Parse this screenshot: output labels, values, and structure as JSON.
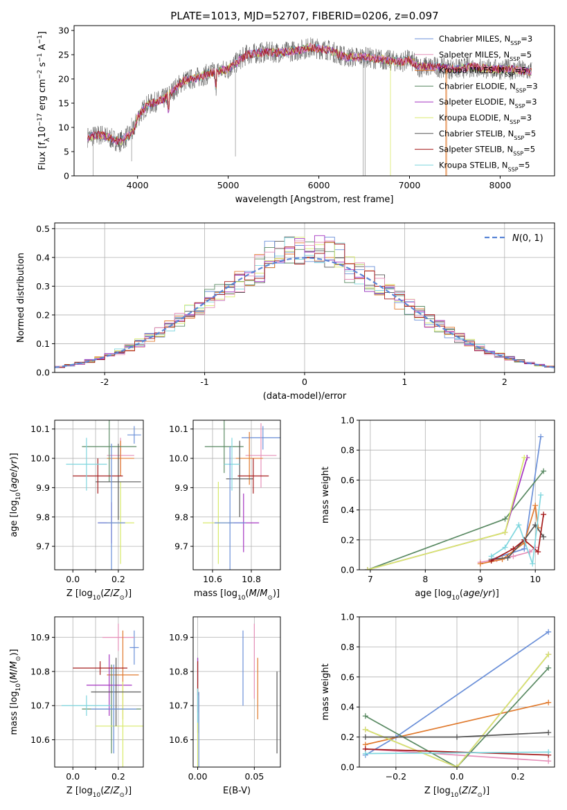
{
  "title": "PLATE=1013, MJD=52707, FIBERID=0206, z=0.097",
  "series_styles": [
    {
      "name": "Chabrier MILES, N_SSP=3",
      "color": "#6a8fd8"
    },
    {
      "name": "Salpeter MILES, N_SSP=5",
      "color": "#e58fb8"
    },
    {
      "name": "Kroupa MILES, N_SSP=5",
      "color": "#e07a2e"
    },
    {
      "name": "Chabrier ELODIE, N_SSP=3",
      "color": "#5a8a63"
    },
    {
      "name": "Salpeter ELODIE, N_SSP=3",
      "color": "#a432c0"
    },
    {
      "name": "Kroupa ELODIE, N_SSP=3",
      "color": "#d8ea6a"
    },
    {
      "name": "Chabrier STELIB, N_SSP=5",
      "color": "#555555"
    },
    {
      "name": "Salpeter STELIB, N_SSP=5",
      "color": "#a51b1b"
    },
    {
      "name": "Kroupa STELIB, N_SSP=5",
      "color": "#7fd6de"
    }
  ],
  "legend_html": [
    "Chabrier MILES, N<tspan baseline-shift='sub' font-size='8'>SSP</tspan>=3",
    "Salpeter MILES, N<tspan baseline-shift='sub' font-size='8'>SSP</tspan>=5",
    "Kroupa MILES, N<tspan baseline-shift='sub' font-size='8'>SSP</tspan>=5",
    "Chabrier ELODIE, N<tspan baseline-shift='sub' font-size='8'>SSP</tspan>=3",
    "Salpeter ELODIE, N<tspan baseline-shift='sub' font-size='8'>SSP</tspan>=3",
    "Kroupa ELODIE, N<tspan baseline-shift='sub' font-size='8'>SSP</tspan>=3",
    "Chabrier STELIB, N<tspan baseline-shift='sub' font-size='8'>SSP</tspan>=5",
    "Salpeter STELIB, N<tspan baseline-shift='sub' font-size='8'>SSP</tspan>=5",
    "Kroupa STELIB, N<tspan baseline-shift='sub' font-size='8'>SSP</tspan>=5"
  ],
  "chart_data": [
    {
      "id": "spectrum",
      "type": "line",
      "xlabel": "wavelength [Angstrom, rest frame]",
      "ylabel": "Flux [fλ10⁻¹⁷ erg cm⁻² s⁻¹ A⁻¹]",
      "xlim": [
        3300,
        8600
      ],
      "ylim": [
        0,
        31
      ],
      "xticks": [
        4000,
        5000,
        6000,
        7000,
        8000
      ],
      "yticks": [
        0,
        5,
        10,
        15,
        20,
        25,
        30
      ],
      "grid": false,
      "legend": "right",
      "continuum": {
        "x": [
          3450,
          3600,
          3800,
          3950,
          4000,
          4100,
          4300,
          4500,
          4700,
          4850,
          5000,
          5200,
          5400,
          5600,
          5800,
          5900,
          6100,
          6300,
          6500,
          6700,
          6900,
          7000,
          7100,
          7300,
          7500,
          7700,
          7900,
          8100,
          8350
        ],
        "y": [
          8,
          8.5,
          7,
          9,
          12,
          14.5,
          16,
          19.5,
          20.5,
          21.5,
          22,
          25,
          25.5,
          25.5,
          26,
          26.5,
          26,
          24.5,
          24.5,
          24,
          23.5,
          24,
          22.5,
          22.5,
          22,
          22.5,
          22,
          22,
          21.5
        ]
      }
    },
    {
      "id": "residuals",
      "type": "histogram",
      "xlabel": "(data-model)/error",
      "ylabel": "Normed distribution",
      "xlim": [
        -2.5,
        2.5
      ],
      "ylim": [
        0,
        0.52
      ],
      "xticks": [
        -2,
        -1,
        0,
        1,
        2
      ],
      "yticks": [
        0,
        0.1,
        0.2,
        0.3,
        0.4,
        0.5
      ],
      "grid": true,
      "legend": "top-right",
      "reference": {
        "name": "N(0,1)",
        "color": "#5b86d6",
        "mean": 0,
        "sigma": 1
      }
    },
    {
      "id": "age_vs_Z",
      "type": "errorbar",
      "xlabel": "Z [log10(Z/Z⊙)]",
      "ylabel": "age [log10(age/yr)]",
      "xlim": [
        -0.08,
        0.31
      ],
      "ylim": [
        9.62,
        10.13
      ],
      "xticks": [
        0,
        0.1,
        0.2
      ],
      "xticklabels": [
        "0.0",
        "",
        "0.2"
      ],
      "yticks": [
        9.7,
        9.8,
        9.9,
        10.0,
        10.1
      ],
      "grid": true,
      "points": [
        [
          0.27,
          10.08,
          0.03,
          0.03
        ],
        [
          0.21,
          10.01,
          0.06,
          0.06
        ],
        [
          0.21,
          10.0,
          0.06,
          0.06
        ],
        [
          0.16,
          10.04,
          0.12,
          0.12
        ],
        [
          0.17,
          9.78,
          0.06,
          0.07
        ],
        [
          0.21,
          9.78,
          0.06,
          0.14
        ],
        [
          0.2,
          9.92,
          0.1,
          0.13
        ],
        [
          0.11,
          9.94,
          0.11,
          0.06
        ],
        [
          0.06,
          9.98,
          0.09,
          0.09
        ],
        [
          0.17,
          9.78,
          0.06,
          0.27
        ]
      ]
    },
    {
      "id": "age_vs_mass",
      "type": "errorbar",
      "xlabel": "mass [log10(M/M⊙)]",
      "ylabel": "",
      "xlim": [
        10.5,
        10.95
      ],
      "ylim": [
        9.62,
        10.13
      ],
      "xticks": [
        10.6,
        10.8
      ],
      "xticklabels": [
        "10.6",
        "10.8"
      ],
      "yticks": [
        9.7,
        9.8,
        9.9,
        10.0,
        10.1
      ],
      "grid": true,
      "points": [
        [
          10.86,
          10.07,
          0.11,
          0.04
        ],
        [
          10.85,
          10.01,
          0.08,
          0.11
        ],
        [
          10.79,
          10.0,
          0.07,
          0.09
        ],
        [
          10.66,
          10.04,
          0.1,
          0.09
        ],
        [
          10.76,
          9.78,
          0.08,
          0.1
        ],
        [
          10.63,
          9.78,
          0.08,
          0.14
        ],
        [
          10.74,
          9.93,
          0.07,
          0.13
        ],
        [
          10.81,
          9.94,
          0.08,
          0.06
        ],
        [
          10.7,
          9.98,
          0.04,
          0.09
        ],
        [
          10.69,
          9.78,
          0.08,
          0.26
        ]
      ]
    },
    {
      "id": "mass_weight_vs_age",
      "type": "line",
      "xlabel": "age [log10(age/yr)]",
      "ylabel": "mass weight",
      "xlim": [
        6.8,
        10.35
      ],
      "ylim": [
        0,
        1
      ],
      "xticks": [
        7,
        8,
        9,
        10
      ],
      "yticks": [
        0,
        0.2,
        0.4,
        0.6,
        0.8,
        1.0
      ],
      "grid": true,
      "series": [
        {
          "name": "Chabrier MILES",
          "ages": [
            9.2,
            9.8,
            10.1
          ],
          "w": [
            0.07,
            0.14,
            0.89
          ]
        },
        {
          "name": "Salpeter MILES",
          "ages": [
            9.0,
            9.3,
            9.6,
            9.9,
            10.0
          ],
          "w": [
            0.05,
            0.07,
            0.09,
            0.12,
            0.15
          ]
        },
        {
          "name": "Kroupa MILES",
          "ages": [
            9.0,
            9.4,
            9.8,
            10.0,
            10.05
          ],
          "w": [
            0.04,
            0.07,
            0.18,
            0.43,
            0.28
          ]
        },
        {
          "name": "Chabrier ELODIE",
          "ages": [
            6.95,
            9.45,
            10.15
          ],
          "w": [
            0.0,
            0.34,
            0.66
          ]
        },
        {
          "name": "Salpeter ELODIE",
          "ages": [
            6.95,
            9.45,
            9.85
          ],
          "w": [
            0.0,
            0.25,
            0.75
          ]
        },
        {
          "name": "Kroupa ELODIE",
          "ages": [
            6.95,
            9.45,
            9.8
          ],
          "w": [
            0.0,
            0.25,
            0.75
          ]
        },
        {
          "name": "Chabrier STELIB",
          "ages": [
            9.2,
            9.5,
            9.8,
            10.0,
            10.15
          ],
          "w": [
            0.07,
            0.08,
            0.2,
            0.3,
            0.22
          ]
        },
        {
          "name": "Salpeter STELIB",
          "ages": [
            9.2,
            9.6,
            9.8,
            10.05,
            10.15
          ],
          "w": [
            0.06,
            0.14,
            0.2,
            0.12,
            0.37
          ]
        },
        {
          "name": "Kroupa STELIB",
          "ages": [
            9.2,
            9.45,
            9.7,
            9.95,
            10.1
          ],
          "w": [
            0.09,
            0.15,
            0.3,
            0.04,
            0.5
          ]
        }
      ]
    },
    {
      "id": "mass_vs_Z",
      "type": "errorbar",
      "xlabel": "Z [log10(Z/Z⊙)]",
      "ylabel": "mass [log10(M/M⊙)]",
      "xlim": [
        -0.08,
        0.31
      ],
      "ylim": [
        10.52,
        10.96
      ],
      "xticks": [
        0,
        0.1,
        0.2
      ],
      "xticklabels": [
        "0.0",
        "",
        "0.2"
      ],
      "yticks": [
        10.6,
        10.7,
        10.8,
        10.9
      ],
      "grid": true,
      "points": [
        [
          0.27,
          10.87,
          0.02,
          0.05
        ],
        [
          0.2,
          10.9,
          0.07,
          0.04
        ],
        [
          0.22,
          10.79,
          0.07,
          0.13
        ],
        [
          0.17,
          10.69,
          0.13,
          0.13
        ],
        [
          0.16,
          10.76,
          0.1,
          0.09
        ],
        [
          0.22,
          10.64,
          0.12,
          0.13
        ],
        [
          0.19,
          10.74,
          0.11,
          0.1
        ],
        [
          0.12,
          10.81,
          0.12,
          0.02
        ],
        [
          0.06,
          10.7,
          0.11,
          0.03
        ],
        [
          0.18,
          10.69,
          0.1,
          0.13
        ]
      ]
    },
    {
      "id": "mass_vs_ebv",
      "type": "errorbar",
      "xlabel": "E(B-V)",
      "ylabel": "",
      "xlim": [
        -0.004,
        0.073
      ],
      "ylim": [
        10.52,
        10.96
      ],
      "xticks": [
        0.0,
        0.05
      ],
      "xticklabels": [
        "0.00",
        "0.05"
      ],
      "yticks": [
        10.6,
        10.7,
        10.8,
        10.9
      ],
      "grid": true,
      "points": [
        [
          0.04,
          10.81,
          0,
          0.11
        ],
        [
          0.05,
          10.83,
          0,
          0.11
        ],
        [
          0.053,
          10.75,
          0,
          0.09
        ],
        [
          0.0,
          10.73,
          0,
          0.11
        ],
        [
          0.0,
          10.76,
          0,
          0.08
        ],
        [
          0.0,
          10.64,
          0,
          0.13
        ],
        [
          0.07,
          10.68,
          0,
          0.12
        ],
        [
          0.0,
          10.78,
          0,
          0.05
        ],
        [
          0.0,
          10.7,
          0,
          0.05
        ],
        [
          0.001,
          10.63,
          0,
          0.11
        ]
      ]
    },
    {
      "id": "mass_weight_vs_Z",
      "type": "line",
      "xlabel": "Z [log10(Z/Z⊙)]",
      "ylabel": "mass weight",
      "xlim": [
        -0.32,
        0.32
      ],
      "ylim": [
        0,
        1
      ],
      "xticks": [
        -0.2,
        0,
        0.2
      ],
      "xticklabels": [
        "−0.2",
        "0.0",
        "0.2"
      ],
      "yticks": [
        0,
        0.2,
        0.4,
        0.6,
        0.8,
        1.0
      ],
      "grid": true,
      "series": [
        {
          "name": "Chabrier MILES",
          "Z": [
            -0.3,
            -0.2,
            0.3
          ],
          "w": [
            0.08,
            0.2,
            0.9
          ]
        },
        {
          "name": "Salpeter MILES",
          "Z": [
            -0.3,
            0.3
          ],
          "w": [
            0.12,
            0.04
          ]
        },
        {
          "name": "Kroupa MILES",
          "Z": [
            -0.3,
            0.3
          ],
          "w": [
            0.15,
            0.43
          ]
        },
        {
          "name": "Chabrier ELODIE",
          "Z": [
            -0.3,
            0.0,
            0.3
          ],
          "w": [
            0.34,
            0.0,
            0.66
          ]
        },
        {
          "name": "Salpeter ELODIE",
          "Z": [
            -0.3,
            0.0,
            0.3
          ],
          "w": [
            0.25,
            0.0,
            0.75
          ]
        },
        {
          "name": "Kroupa ELODIE",
          "Z": [
            -0.3,
            0.0,
            0.3
          ],
          "w": [
            0.25,
            0.0,
            0.75
          ]
        },
        {
          "name": "Chabrier STELIB",
          "Z": [
            -0.3,
            0.0,
            0.3
          ],
          "w": [
            0.2,
            0.2,
            0.23
          ]
        },
        {
          "name": "Salpeter STELIB",
          "Z": [
            -0.3,
            0.3
          ],
          "w": [
            0.12,
            0.08
          ]
        },
        {
          "name": "Kroupa STELIB",
          "Z": [
            -0.3,
            0.3
          ],
          "w": [
            0.09,
            0.1
          ]
        }
      ]
    }
  ]
}
